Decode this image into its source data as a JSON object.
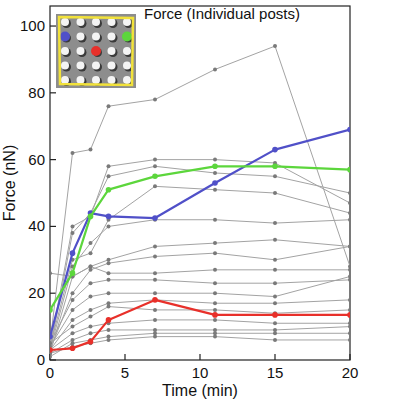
{
  "chart_data": {
    "type": "line",
    "title": "Force (Individual posts)",
    "x_label": "Time (min)",
    "y_label": "Force (nN)",
    "x": [
      0,
      1.5,
      2.7,
      3.9,
      7,
      11,
      15,
      20
    ],
    "xlim": [
      0,
      20
    ],
    "xticks": [
      0,
      5,
      10,
      15,
      20
    ],
    "ylim": [
      0,
      106
    ],
    "yticks": [
      0,
      20,
      40,
      60,
      80,
      100
    ],
    "marker": "circle",
    "grid": false,
    "series": [
      {
        "color": "#a3a3a3",
        "values": [
          5,
          62,
          63,
          76,
          78,
          87,
          94,
          28
        ]
      },
      {
        "color": "#a3a3a3",
        "values": [
          4,
          40,
          43,
          58,
          60,
          60,
          59,
          47
        ]
      },
      {
        "color": "#a3a3a3",
        "values": [
          3,
          38,
          44,
          55,
          58,
          56,
          55,
          50
        ]
      },
      {
        "color": "#a3a3a3",
        "values": [
          4,
          30,
          32,
          42,
          52,
          51,
          50,
          44
        ]
      },
      {
        "color": "#a3a3a3",
        "values": [
          3,
          28,
          35,
          40,
          42,
          42,
          41,
          42
        ]
      },
      {
        "color": "#a3a3a3",
        "values": [
          2,
          25,
          28,
          30,
          34,
          35,
          36,
          34
        ]
      },
      {
        "color": "#a3a3a3",
        "values": [
          3,
          20,
          27,
          29,
          31,
          32,
          30,
          34
        ]
      },
      {
        "color": "#a3a3a3",
        "values": [
          26,
          25,
          28,
          26,
          26,
          27,
          27,
          27
        ]
      },
      {
        "color": "#a3a3a3",
        "values": [
          5,
          18,
          23,
          24,
          24,
          23,
          23,
          24
        ]
      },
      {
        "color": "#a3a3a3",
        "values": [
          4,
          15,
          19,
          20,
          20,
          20,
          19,
          25
        ]
      },
      {
        "color": "#a3a3a3",
        "values": [
          3,
          12,
          15,
          17,
          18,
          17,
          17,
          18
        ]
      },
      {
        "color": "#a3a3a3",
        "values": [
          5,
          10,
          13,
          16,
          15,
          15,
          14,
          15
        ]
      },
      {
        "color": "#a3a3a3",
        "values": [
          3,
          8,
          10,
          11,
          12,
          12,
          11,
          11
        ]
      },
      {
        "color": "#a3a3a3",
        "values": [
          2,
          6,
          8,
          9,
          9,
          9,
          9,
          10
        ]
      },
      {
        "color": "#a3a3a3",
        "values": [
          1,
          5,
          6,
          7,
          8,
          8,
          8,
          8
        ]
      },
      {
        "color": "#a3a3a3",
        "values": [
          2,
          4,
          5,
          6,
          7,
          7,
          6,
          6
        ]
      },
      {
        "color": "#5050c8",
        "values": [
          7,
          32,
          44,
          43,
          42.5,
          53,
          63,
          69
        ]
      },
      {
        "color": "#5cd63c",
        "values": [
          15,
          26,
          43,
          51,
          55,
          58,
          58,
          57
        ]
      },
      {
        "color": "#e8302a",
        "values": [
          3,
          3.5,
          5.5,
          12,
          18,
          13.5,
          13.5,
          13.5
        ]
      }
    ]
  }
}
